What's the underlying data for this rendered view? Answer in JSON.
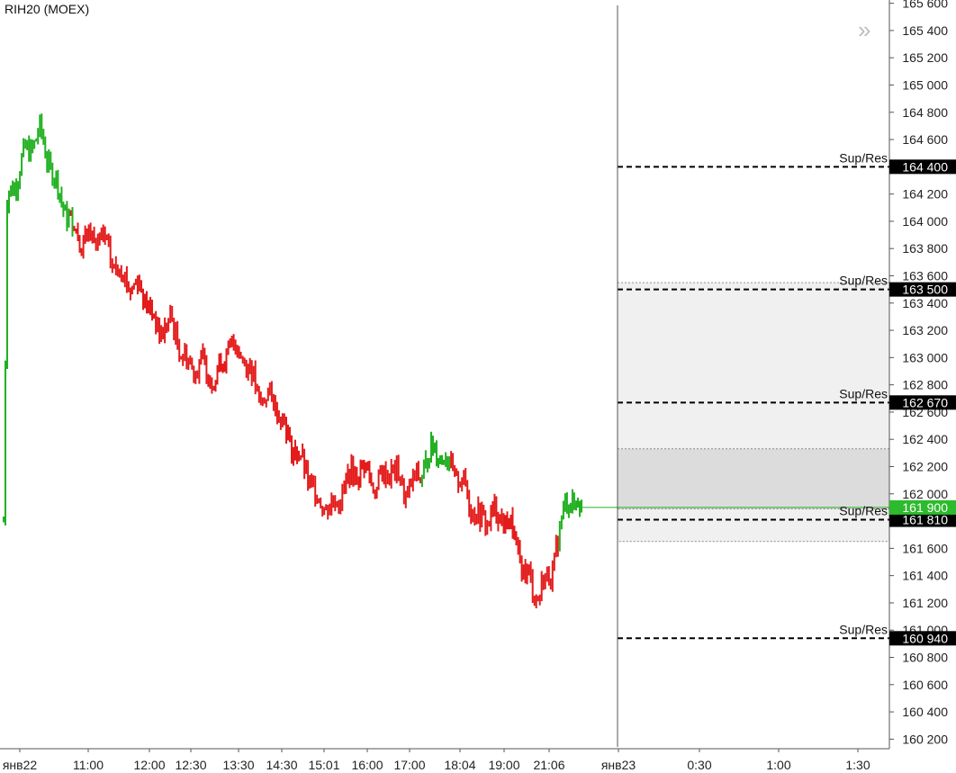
{
  "ticker": "RIH20 (MOEX)",
  "collapse_icon": "double-chevron-right-icon",
  "colors": {
    "up": "#22b022",
    "down": "#e31b1b",
    "last_price_line": "#22b022",
    "level_badge_bg": "#000000",
    "last_badge_bg": "#2cbb2c",
    "zone_light": "#f0f0f0",
    "zone_dark": "#dcdcdc"
  },
  "chart_data": {
    "type": "candlestick",
    "y_axis": {
      "min": 160100,
      "max": 165600,
      "ticks": [
        "165 600",
        "165 400",
        "165 200",
        "165 000",
        "164 800",
        "164 600",
        "164 400",
        "164 200",
        "164 000",
        "163 800",
        "163 600",
        "163 400",
        "163 200",
        "163 000",
        "162 800",
        "162 600",
        "162 400",
        "162 200",
        "162 000",
        "161 800",
        "161 600",
        "161 400",
        "161 200",
        "161 000",
        "160 800",
        "160 600",
        "160 400",
        "160 200"
      ]
    },
    "x_axis": {
      "tick_labels": [
        "янв22",
        "11:00",
        "12:00",
        "12:30",
        "13:30",
        "14:30",
        "15:01",
        "16:00",
        "17:00",
        "18:04",
        "19:00",
        "21:06",
        "янв23",
        "0:30",
        "1:00",
        "1:30"
      ]
    },
    "price_path": [
      {
        "t": 0,
        "p": 161800,
        "trend": "up"
      },
      {
        "t": 0.5,
        "p": 164150,
        "trend": "up"
      },
      {
        "t": 3,
        "p": 164500,
        "trend": "up"
      },
      {
        "t": 5,
        "p": 164650,
        "trend": "up"
      },
      {
        "t": 7,
        "p": 164300,
        "trend": "up"
      },
      {
        "t": 9,
        "p": 164000,
        "trend": "mixed"
      },
      {
        "t": 11,
        "p": 163850,
        "trend": "down"
      },
      {
        "t": 13,
        "p": 163900,
        "trend": "down"
      },
      {
        "t": 15,
        "p": 163700,
        "trend": "down"
      },
      {
        "t": 17,
        "p": 163550,
        "trend": "down"
      },
      {
        "t": 19,
        "p": 163500,
        "trend": "down"
      },
      {
        "t": 21,
        "p": 163200,
        "trend": "down"
      },
      {
        "t": 23,
        "p": 163250,
        "trend": "down"
      },
      {
        "t": 25,
        "p": 162950,
        "trend": "down"
      },
      {
        "t": 27,
        "p": 162950,
        "trend": "down"
      },
      {
        "t": 29,
        "p": 162850,
        "trend": "down"
      },
      {
        "t": 31,
        "p": 163100,
        "trend": "down"
      },
      {
        "t": 33,
        "p": 163000,
        "trend": "down"
      },
      {
        "t": 35,
        "p": 162700,
        "trend": "down"
      },
      {
        "t": 37,
        "p": 162700,
        "trend": "down"
      },
      {
        "t": 39,
        "p": 162400,
        "trend": "down"
      },
      {
        "t": 41,
        "p": 162200,
        "trend": "down"
      },
      {
        "t": 43,
        "p": 161950,
        "trend": "down"
      },
      {
        "t": 45,
        "p": 161900,
        "trend": "down"
      },
      {
        "t": 47,
        "p": 162100,
        "trend": "down"
      },
      {
        "t": 49,
        "p": 162200,
        "trend": "down"
      },
      {
        "t": 51,
        "p": 162050,
        "trend": "down"
      },
      {
        "t": 53,
        "p": 162200,
        "trend": "down"
      },
      {
        "t": 55,
        "p": 162000,
        "trend": "down"
      },
      {
        "t": 57,
        "p": 162150,
        "trend": "up"
      },
      {
        "t": 59,
        "p": 162350,
        "trend": "up"
      },
      {
        "t": 61,
        "p": 162200,
        "trend": "down"
      },
      {
        "t": 63,
        "p": 162050,
        "trend": "down"
      },
      {
        "t": 65,
        "p": 161800,
        "trend": "down"
      },
      {
        "t": 67,
        "p": 161850,
        "trend": "down"
      },
      {
        "t": 69,
        "p": 161800,
        "trend": "down"
      },
      {
        "t": 71,
        "p": 161450,
        "trend": "down"
      },
      {
        "t": 73,
        "p": 161250,
        "trend": "down"
      },
      {
        "t": 75,
        "p": 161450,
        "trend": "down"
      },
      {
        "t": 76,
        "p": 161700,
        "trend": "up"
      },
      {
        "t": 77,
        "p": 162000,
        "trend": "up"
      },
      {
        "t": 78,
        "p": 161900,
        "trend": "up"
      },
      {
        "t": 79,
        "p": 161900,
        "trend": "up"
      }
    ],
    "last_price": {
      "value": 161900,
      "label": "161 900"
    },
    "levels": [
      {
        "name": "Sup/Res",
        "value": 164400,
        "label": "164 400"
      },
      {
        "name": "Sup/Res",
        "value": 163500,
        "label": "163 500"
      },
      {
        "name": "Sup/Res",
        "value": 162670,
        "label": "162 670"
      },
      {
        "name": "Sup/Res",
        "value": 161810,
        "label": "161 810"
      },
      {
        "name": "Sup/Res",
        "value": 160940,
        "label": "160 940"
      }
    ],
    "zones": [
      {
        "top": 163550,
        "bottom": 161650,
        "shade": "light"
      },
      {
        "top": 162330,
        "bottom": 161890,
        "shade": "dark"
      }
    ]
  }
}
